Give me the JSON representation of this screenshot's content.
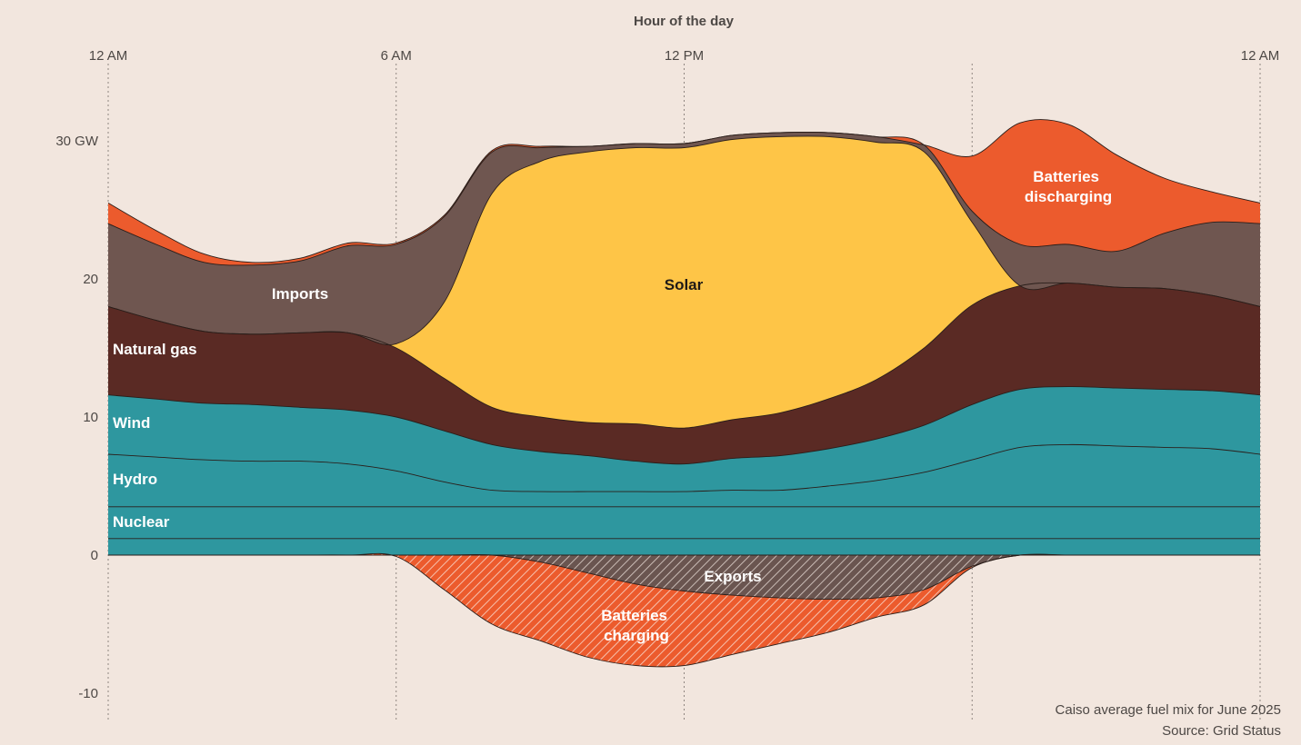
{
  "chart_data": {
    "type": "area",
    "x_title": "Hour of the day",
    "x_ticks": [
      {
        "hour": 0,
        "label": "12 AM"
      },
      {
        "hour": 6,
        "label": "6 AM"
      },
      {
        "hour": 12,
        "label": "12 PM"
      },
      {
        "hour": 24,
        "label": "12 AM"
      }
    ],
    "x_extra_gridline_hours": [
      18
    ],
    "y_ticks": [
      {
        "value": 30,
        "label": "30 GW"
      },
      {
        "value": 20,
        "label": "20"
      },
      {
        "value": 10,
        "label": "10"
      },
      {
        "value": 0,
        "label": "0"
      },
      {
        "value": -10,
        "label": "-10"
      }
    ],
    "xlim": [
      0,
      24
    ],
    "ylim": [
      -11.5,
      33
    ],
    "unit": "GW",
    "hours": [
      0,
      1,
      2,
      3,
      4,
      5,
      6,
      7,
      8,
      9,
      10,
      11,
      12,
      13,
      14,
      15,
      16,
      17,
      18,
      19,
      20,
      21,
      22,
      23,
      24
    ],
    "series": [
      {
        "name": "Nuclear",
        "color": "#2e979f",
        "values": [
          1.2,
          1.2,
          1.2,
          1.2,
          1.2,
          1.2,
          1.2,
          1.2,
          1.2,
          1.2,
          1.2,
          1.2,
          1.2,
          1.2,
          1.2,
          1.2,
          1.2,
          1.2,
          1.2,
          1.2,
          1.2,
          1.2,
          1.2,
          1.2,
          1.2
        ]
      },
      {
        "name": "",
        "color": "#2e979f",
        "values": [
          2.3,
          2.3,
          2.3,
          2.3,
          2.3,
          2.3,
          2.3,
          2.3,
          2.3,
          2.3,
          2.3,
          2.3,
          2.3,
          2.3,
          2.3,
          2.3,
          2.3,
          2.3,
          2.3,
          2.3,
          2.3,
          2.3,
          2.3,
          2.3,
          2.3
        ]
      },
      {
        "name": "Hydro",
        "color": "#2e979f",
        "values": [
          3.8,
          3.6,
          3.4,
          3.3,
          3.3,
          3.1,
          2.6,
          1.8,
          1.2,
          1.1,
          1.1,
          1.1,
          1.1,
          1.2,
          1.2,
          1.5,
          1.9,
          2.5,
          3.4,
          4.3,
          4.5,
          4.4,
          4.3,
          4.2,
          3.8
        ]
      },
      {
        "name": "Wind",
        "color": "#2e979f",
        "values": [
          4.3,
          4.2,
          4.1,
          4.1,
          3.9,
          3.9,
          3.9,
          3.7,
          3.3,
          2.9,
          2.6,
          2.2,
          2.0,
          2.3,
          2.5,
          2.7,
          3.0,
          3.4,
          4.0,
          4.2,
          4.2,
          4.2,
          4.2,
          4.2,
          4.3
        ]
      },
      {
        "name": "Natural gas",
        "color": "#5a2a24",
        "values": [
          6.4,
          5.7,
          5.2,
          5.1,
          5.4,
          5.6,
          5.0,
          3.8,
          2.7,
          2.5,
          2.4,
          2.7,
          2.6,
          2.8,
          3.1,
          3.6,
          4.3,
          5.6,
          7.2,
          7.5,
          7.5,
          7.3,
          7.3,
          6.9,
          6.4
        ]
      },
      {
        "name": "Solar",
        "color": "#fec547",
        "values": [
          0,
          0,
          0,
          0,
          0,
          0,
          0.3,
          5.5,
          15.5,
          18.5,
          19.6,
          20.0,
          20.3,
          20.3,
          20.0,
          19.0,
          17.2,
          14.2,
          6.0,
          0,
          0,
          0,
          0,
          0,
          0
        ]
      },
      {
        "name": "Imports",
        "color": "#6f5650",
        "values": [
          6.0,
          5.5,
          5.0,
          5.0,
          5.2,
          6.3,
          7.2,
          6.2,
          3.0,
          1.0,
          0.4,
          0.3,
          0.3,
          0.3,
          0.3,
          0.3,
          0.4,
          0.5,
          0.8,
          3.0,
          2.8,
          2.6,
          4.0,
          5.3,
          6.0
        ]
      },
      {
        "name": "Batteries discharging",
        "color": "#ec5b2d",
        "values": [
          1.5,
          1.0,
          0.6,
          0.2,
          0.2,
          0.2,
          0.1,
          0.1,
          0.1,
          0.1,
          0,
          0,
          0,
          0,
          0,
          0,
          0,
          0,
          4.0,
          8.8,
          8.7,
          7.0,
          4.0,
          2.2,
          1.5
        ]
      }
    ],
    "negative_series": [
      {
        "name": "Batteries charging",
        "color": "#ec5b2d",
        "pattern": "hatched",
        "values": [
          0,
          0,
          0,
          0,
          0,
          0,
          -0.1,
          -2.5,
          -5.0,
          -6.2,
          -7.4,
          -8.0,
          -8.0,
          -7.2,
          -6.4,
          -5.6,
          -4.5,
          -3.6,
          -0.9,
          0,
          0,
          0,
          0,
          0,
          0
        ]
      },
      {
        "name": "Exports",
        "color": "#6a5550",
        "pattern": "hatched",
        "values": [
          0,
          0,
          0,
          0,
          0,
          0,
          0,
          0,
          0,
          -0.5,
          -1.3,
          -2.1,
          -2.6,
          -2.9,
          -3.1,
          -3.2,
          -3.1,
          -2.5,
          -0.8,
          0,
          0,
          0,
          0,
          0,
          0
        ]
      }
    ],
    "annotations": [
      {
        "text": "Caiso average fuel mix for June 2025"
      },
      {
        "text": "Source: Grid Status"
      }
    ]
  }
}
